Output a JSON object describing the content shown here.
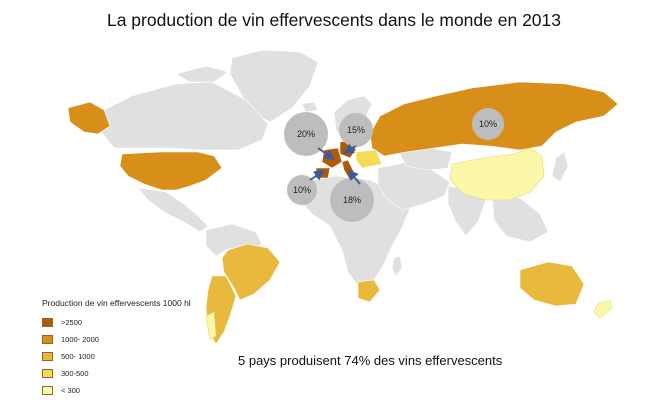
{
  "title": "La production de vin effervescents dans le monde en 2013",
  "summary": "5 pays produisent 74% des vins effervescents",
  "legend": {
    "title": "Production de vin effervescents 1000 hl",
    "items": [
      {
        "label": ">2500",
        "color": "#b35806"
      },
      {
        "label": "1000- 2000",
        "color": "#d88f1a"
      },
      {
        "label": "500- 1000",
        "color": "#e8b93c"
      },
      {
        "label": "300-500",
        "color": "#f3dc58"
      },
      {
        "label": "< 300",
        "color": "#fbf7a8"
      }
    ]
  },
  "bubbles": [
    {
      "label": "20%"
    },
    {
      "label": "15%"
    },
    {
      "label": "10%"
    },
    {
      "label": "10%"
    },
    {
      "label": "18%"
    }
  ],
  "colors": {
    "no_data": "#e0e0e0",
    "bubble": "#bdbdbd",
    "arrow": "#3a5a9a"
  }
}
